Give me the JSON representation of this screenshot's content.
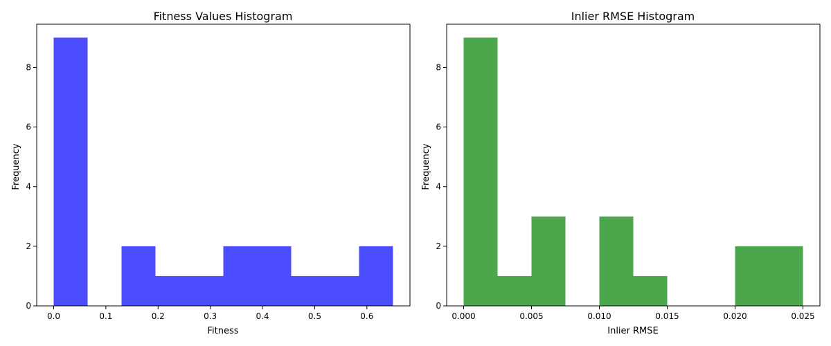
{
  "chart_data": [
    {
      "type": "bar",
      "title": "Fitness Values Histogram",
      "xlabel": "Fitness",
      "ylabel": "Frequency",
      "color": "#0000ff",
      "opacity": 0.7,
      "xlim": [
        -0.0325,
        0.6825
      ],
      "ylim": [
        0,
        9.45
      ],
      "xticks": [
        0.0,
        0.1,
        0.2,
        0.3,
        0.4,
        0.5,
        0.6
      ],
      "xtick_labels": [
        "0.0",
        "0.1",
        "0.2",
        "0.3",
        "0.4",
        "0.5",
        "0.6"
      ],
      "yticks": [
        0,
        2,
        4,
        6,
        8
      ],
      "ytick_labels": [
        "0",
        "2",
        "4",
        "6",
        "8"
      ],
      "bin_edges": [
        0.0,
        0.065,
        0.13,
        0.195,
        0.26,
        0.325,
        0.39,
        0.455,
        0.52,
        0.585,
        0.65
      ],
      "values": [
        9,
        0,
        2,
        1,
        1,
        2,
        2,
        1,
        1,
        2
      ]
    },
    {
      "type": "bar",
      "title": "Inlier RMSE Histogram",
      "xlabel": "Inlier RMSE",
      "ylabel": "Frequency",
      "color": "#008000",
      "opacity": 0.7,
      "xlim": [
        -0.00125,
        0.02625
      ],
      "ylim": [
        0,
        9.45
      ],
      "xticks": [
        0.0,
        0.005,
        0.01,
        0.015,
        0.02,
        0.025
      ],
      "xtick_labels": [
        "0.000",
        "0.005",
        "0.010",
        "0.015",
        "0.020",
        "0.025"
      ],
      "yticks": [
        0,
        2,
        4,
        6,
        8
      ],
      "ytick_labels": [
        "0",
        "2",
        "4",
        "6",
        "8"
      ],
      "bin_edges": [
        0.0,
        0.0025,
        0.005,
        0.0075,
        0.01,
        0.0125,
        0.015,
        0.0175,
        0.02,
        0.0225,
        0.025
      ],
      "values": [
        9,
        1,
        3,
        0,
        3,
        1,
        0,
        0,
        2,
        2
      ]
    }
  ]
}
